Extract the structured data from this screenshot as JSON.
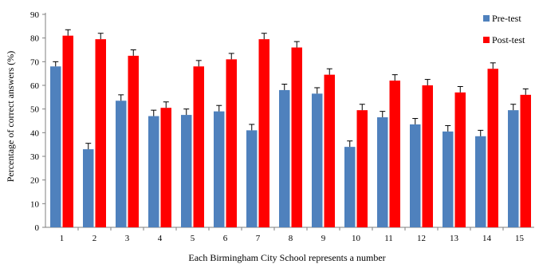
{
  "chart_data": {
    "type": "bar",
    "title": "",
    "xlabel": "Each Birmingham City School represents a number",
    "ylabel": "Percentage of correct answers (%)",
    "ylim": [
      0,
      90
    ],
    "yticks": [
      0,
      10,
      20,
      30,
      40,
      50,
      60,
      70,
      80,
      90
    ],
    "categories": [
      "1",
      "2",
      "3",
      "4",
      "5",
      "6",
      "7",
      "8",
      "9",
      "10",
      "11",
      "12",
      "13",
      "14",
      "15"
    ],
    "grid": false,
    "legend_position": "top-right",
    "series": [
      {
        "name": "Pre-test",
        "color": "#4F81BD",
        "values": [
          68,
          33,
          53.5,
          47,
          47.5,
          49,
          41,
          58,
          56.5,
          34,
          46.5,
          43.5,
          40.5,
          38.5,
          49.5
        ],
        "error": [
          2,
          2.5,
          2.5,
          2.5,
          2.5,
          2.5,
          2.5,
          2.5,
          2.5,
          2.5,
          2.5,
          2.5,
          2.5,
          2.5,
          2.5
        ]
      },
      {
        "name": "Post-test",
        "color": "#FF0000",
        "values": [
          81,
          79.5,
          72.5,
          50.5,
          68,
          71,
          79.5,
          76,
          64.5,
          49.5,
          62,
          60,
          57,
          67,
          56
        ],
        "error": [
          2.5,
          2.5,
          2.5,
          2.5,
          2.5,
          2.5,
          2.5,
          2.5,
          2.5,
          2.5,
          2.5,
          2.5,
          2.5,
          2.5,
          2.5
        ]
      }
    ]
  }
}
